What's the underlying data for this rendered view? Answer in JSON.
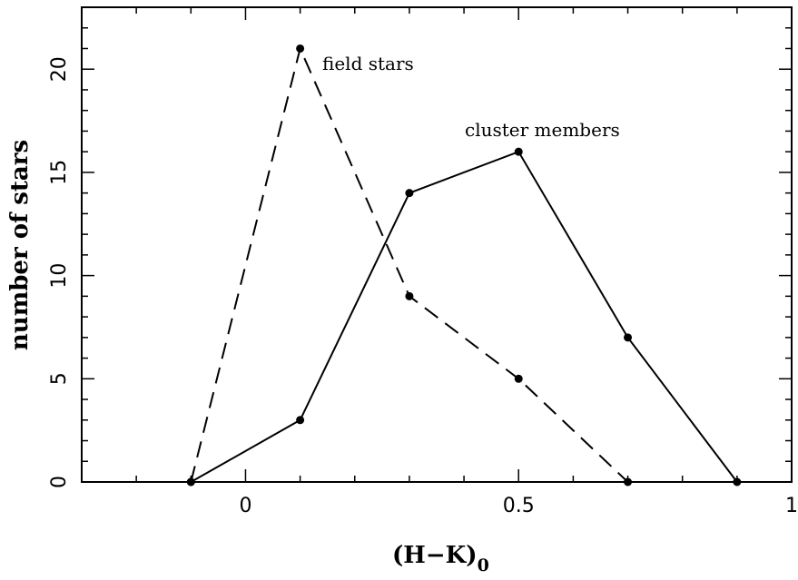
{
  "chart_data": {
    "type": "line",
    "xlabel": "(H−K)",
    "xlabel_subscript": "0",
    "ylabel": "number of stars",
    "xlim": [
      -0.3,
      1.0
    ],
    "ylim": [
      0,
      23
    ],
    "x_ticks": [
      0,
      0.5,
      1
    ],
    "x_tick_labels": [
      "0",
      "0.5",
      "1"
    ],
    "x_minor_step": 0.1,
    "y_ticks": [
      0,
      5,
      10,
      15,
      20
    ],
    "y_tick_labels": [
      "0",
      "5",
      "10",
      "15",
      "20"
    ],
    "y_minor_step": 1,
    "grid": false,
    "series": [
      {
        "name": "cluster members",
        "line_style": "solid",
        "color": "#000000",
        "x": [
          -0.1,
          0.1,
          0.3,
          0.5,
          0.7,
          0.9
        ],
        "y": [
          0,
          3,
          14,
          16,
          7,
          0
        ]
      },
      {
        "name": "field stars",
        "line_style": "dashed",
        "color": "#000000",
        "x": [
          -0.1,
          0.1,
          0.3,
          0.5,
          0.7
        ],
        "y": [
          0,
          21,
          9,
          5,
          0
        ]
      }
    ],
    "annotations": [
      {
        "text": "field stars",
        "series": "field stars"
      },
      {
        "text": "cluster members",
        "series": "cluster members"
      }
    ]
  }
}
